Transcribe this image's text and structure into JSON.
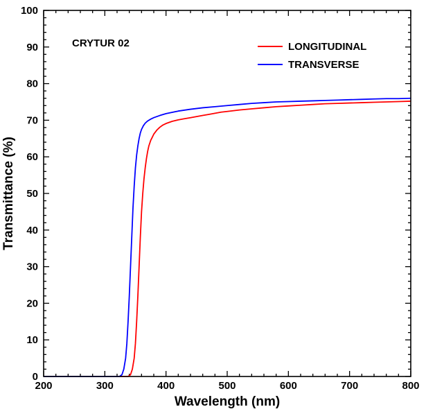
{
  "chart_data": {
    "type": "line",
    "title": "",
    "annotation": "CRYTUR 02",
    "xlabel": "Wavelength (nm)",
    "ylabel": "Transmittance (%)",
    "xlim": [
      200,
      800
    ],
    "ylim": [
      0,
      100
    ],
    "xticks": [
      "200",
      "300",
      "400",
      "500",
      "600",
      "700",
      "800"
    ],
    "yticks": [
      "0",
      "10",
      "20",
      "30",
      "40",
      "50",
      "60",
      "70",
      "80",
      "90",
      "100"
    ],
    "grid": false,
    "legend_position": "top-right",
    "series": [
      {
        "name": "LONGITUDINAL",
        "color": "#ff0000",
        "x": [
          200,
          330,
          338,
          342,
          345,
          348,
          350,
          352,
          354,
          356,
          358,
          360,
          362,
          364,
          366,
          368,
          370,
          372,
          375,
          378,
          380,
          385,
          390,
          395,
          400,
          410,
          420,
          430,
          440,
          450,
          460,
          470,
          480,
          490,
          500,
          520,
          540,
          560,
          580,
          600,
          620,
          640,
          660,
          680,
          700,
          720,
          740,
          760,
          780,
          800
        ],
        "y": [
          0,
          0,
          0,
          0.5,
          2,
          5,
          9,
          15,
          22,
          30,
          38,
          45,
          50,
          54,
          57,
          59.5,
          61.5,
          63,
          64.5,
          65.5,
          66.2,
          67.3,
          68.1,
          68.7,
          69.1,
          69.7,
          70.1,
          70.4,
          70.7,
          71,
          71.3,
          71.6,
          71.9,
          72.2,
          72.4,
          72.8,
          73.1,
          73.4,
          73.7,
          73.9,
          74.1,
          74.3,
          74.5,
          74.6,
          74.7,
          74.8,
          74.9,
          75,
          75.1,
          75.2
        ]
      },
      {
        "name": "TRANSVERSE",
        "color": "#0000ff",
        "x": [
          200,
          318,
          324,
          328,
          331,
          334,
          336,
          338,
          340,
          342,
          344,
          346,
          348,
          350,
          352,
          354,
          356,
          358,
          360,
          363,
          366,
          370,
          375,
          380,
          390,
          400,
          420,
          440,
          460,
          480,
          500,
          520,
          540,
          560,
          580,
          600,
          620,
          640,
          660,
          680,
          700,
          720,
          740,
          760,
          780,
          800
        ],
        "y": [
          0,
          0,
          0,
          0.5,
          2,
          5,
          9,
          15,
          22,
          30,
          38,
          46,
          52,
          57,
          60.5,
          63,
          65,
          66.5,
          67.5,
          68.5,
          69.2,
          69.8,
          70.3,
          70.7,
          71.3,
          71.8,
          72.5,
          73,
          73.4,
          73.7,
          74,
          74.3,
          74.6,
          74.8,
          75,
          75.1,
          75.2,
          75.3,
          75.4,
          75.5,
          75.6,
          75.7,
          75.8,
          75.9,
          75.9,
          76
        ]
      }
    ]
  }
}
